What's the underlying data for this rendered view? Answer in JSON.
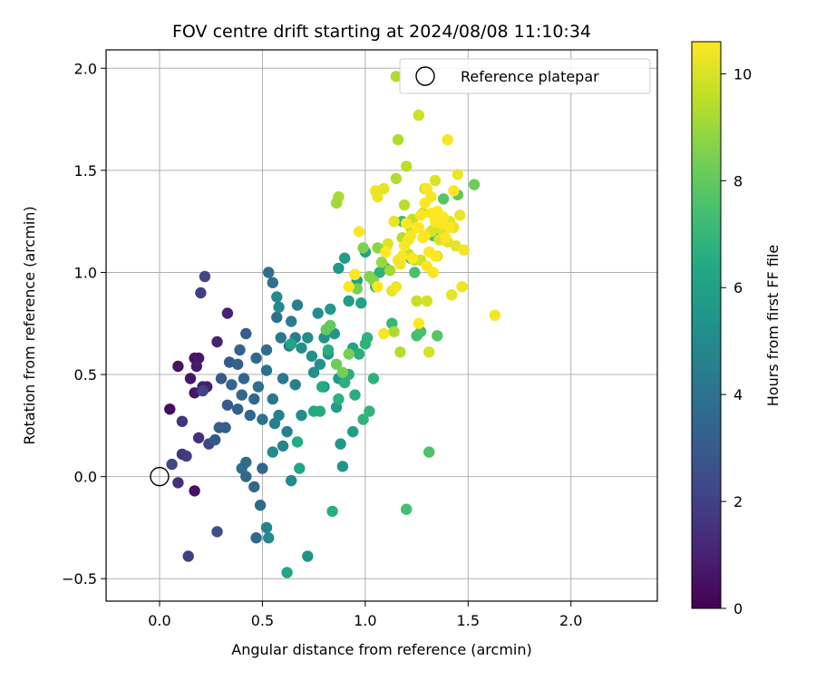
{
  "chart_data": {
    "type": "scatter",
    "title": "FOV centre drift starting at 2024/08/08 11:10:34",
    "xlabel": "Angular distance from reference (arcmin)",
    "ylabel": "Rotation from reference (arcmin)",
    "xlim": [
      -0.26,
      2.42
    ],
    "ylim": [
      -0.61,
      2.09
    ],
    "xticks": [
      0.0,
      0.5,
      1.0,
      1.5,
      2.0
    ],
    "xtick_labels": [
      "0.0",
      "0.5",
      "1.0",
      "1.5",
      "2.0"
    ],
    "yticks": [
      -0.5,
      0.0,
      0.5,
      1.0,
      1.5,
      2.0
    ],
    "ytick_labels": [
      "−0.5",
      "0.0",
      "0.5",
      "1.0",
      "1.5",
      "2.0"
    ],
    "grid": true,
    "legend": {
      "position": "top-right",
      "label": "Reference platepar"
    },
    "reference_point": {
      "x": 0.0,
      "y": 0.0
    },
    "colorbar": {
      "label": "Hours from first FF file",
      "colormap": "viridis",
      "range": [
        0,
        10.6
      ],
      "ticks": [
        0,
        2,
        4,
        6,
        8,
        10
      ],
      "tick_labels": [
        "0",
        "2",
        "4",
        "6",
        "8",
        "10"
      ]
    },
    "points": [
      [
        0.05,
        0.33,
        0.4
      ],
      [
        0.09,
        0.54,
        0.5
      ],
      [
        0.15,
        0.48,
        0.6
      ],
      [
        0.17,
        0.58,
        0.6
      ],
      [
        0.19,
        0.58,
        0.7
      ],
      [
        0.17,
        0.41,
        0.6
      ],
      [
        0.21,
        0.44,
        0.8
      ],
      [
        0.18,
        0.54,
        0.8
      ],
      [
        0.23,
        0.44,
        0.9
      ],
      [
        0.28,
        0.66,
        1.0
      ],
      [
        0.33,
        0.8,
        1.0
      ],
      [
        0.17,
        -0.07,
        0.5
      ],
      [
        0.09,
        -0.03,
        1.4
      ],
      [
        0.11,
        0.11,
        1.6
      ],
      [
        0.11,
        0.27,
        1.6
      ],
      [
        0.13,
        0.1,
        1.9
      ],
      [
        0.19,
        0.19,
        1.5
      ],
      [
        0.14,
        -0.39,
        2.0
      ],
      [
        0.2,
        0.9,
        2.0
      ],
      [
        0.22,
        0.98,
        2.2
      ],
      [
        0.21,
        0.42,
        2.1
      ],
      [
        0.24,
        0.16,
        2.2
      ],
      [
        0.06,
        0.06,
        2.3
      ],
      [
        0.28,
        -0.27,
        2.6
      ],
      [
        0.27,
        0.18,
        3.0
      ],
      [
        0.29,
        0.24,
        3.2
      ],
      [
        0.3,
        0.48,
        3.0
      ],
      [
        0.33,
        0.35,
        3.0
      ],
      [
        0.34,
        0.56,
        3.0
      ],
      [
        0.32,
        0.24,
        3.2
      ],
      [
        0.38,
        0.33,
        3.2
      ],
      [
        0.35,
        0.45,
        3.5
      ],
      [
        0.38,
        0.55,
        3.3
      ],
      [
        0.39,
        0.62,
        3.3
      ],
      [
        0.4,
        0.4,
        3.5
      ],
      [
        0.41,
        0.48,
        3.5
      ],
      [
        0.42,
        0.7,
        3.2
      ],
      [
        0.4,
        0.04,
        3.8
      ],
      [
        0.42,
        0.07,
        3.6
      ],
      [
        0.44,
        0.3,
        3.5
      ],
      [
        0.46,
        0.38,
        3.5
      ],
      [
        0.47,
        0.58,
        3.6
      ],
      [
        0.42,
        0.0,
        3.6
      ],
      [
        0.46,
        -0.05,
        3.5
      ],
      [
        0.47,
        -0.3,
        3.5
      ],
      [
        0.49,
        -0.14,
        3.6
      ],
      [
        0.5,
        0.04,
        3.6
      ],
      [
        0.48,
        0.44,
        3.8
      ],
      [
        0.5,
        0.28,
        4.0
      ],
      [
        0.52,
        0.52,
        4.0
      ],
      [
        0.52,
        0.62,
        3.8
      ],
      [
        0.53,
        1.0,
        3.8
      ],
      [
        0.55,
        0.95,
        3.9
      ],
      [
        0.57,
        0.78,
        3.9
      ],
      [
        0.55,
        0.38,
        4.2
      ],
      [
        0.59,
        0.68,
        4.2
      ],
      [
        0.6,
        0.48,
        4.2
      ],
      [
        0.63,
        0.64,
        4.3
      ],
      [
        0.64,
        0.76,
        4.4
      ],
      [
        0.66,
        0.45,
        4.5
      ],
      [
        0.66,
        0.68,
        4.4
      ],
      [
        0.67,
        0.84,
        4.6
      ],
      [
        0.56,
        0.26,
        4.5
      ],
      [
        0.58,
        0.3,
        4.6
      ],
      [
        0.6,
        0.15,
        4.8
      ],
      [
        0.62,
        0.22,
        4.6
      ],
      [
        0.64,
        -0.02,
        4.9
      ],
      [
        0.52,
        -0.25,
        4.8
      ],
      [
        0.53,
        -0.3,
        5.0
      ],
      [
        0.55,
        0.12,
        5.0
      ],
      [
        0.57,
        0.88,
        5.0
      ],
      [
        0.58,
        0.83,
        5.0
      ],
      [
        0.69,
        0.3,
        5.2
      ],
      [
        0.69,
        0.63,
        5.2
      ],
      [
        0.72,
        -0.39,
        5.4
      ],
      [
        0.72,
        0.68,
        5.1
      ],
      [
        0.74,
        0.59,
        5.3
      ],
      [
        0.75,
        0.51,
        5.2
      ],
      [
        0.77,
        0.8,
        5.1
      ],
      [
        0.78,
        0.55,
        5.4
      ],
      [
        0.8,
        0.44,
        5.6
      ],
      [
        0.8,
        0.68,
        5.4
      ],
      [
        0.82,
        0.6,
        5.5
      ],
      [
        0.83,
        0.82,
        5.6
      ],
      [
        0.85,
        0.7,
        5.5
      ],
      [
        0.87,
        0.48,
        5.7
      ],
      [
        0.86,
        0.34,
        5.8
      ],
      [
        0.88,
        0.16,
        5.6
      ],
      [
        0.89,
        0.05,
        5.5
      ],
      [
        0.87,
        1.02,
        5.6
      ],
      [
        0.9,
        1.07,
        5.7
      ],
      [
        0.92,
        0.86,
        5.8
      ],
      [
        0.94,
        0.22,
        5.8
      ],
      [
        0.94,
        0.63,
        6.0
      ],
      [
        0.96,
        0.96,
        6.0
      ],
      [
        0.98,
        0.85,
        6.1
      ],
      [
        1.0,
        1.1,
        6.0
      ],
      [
        0.62,
        -0.47,
        6.2
      ],
      [
        0.64,
        0.65,
        6.2
      ],
      [
        0.68,
        0.04,
        6.3
      ],
      [
        0.67,
        0.17,
        6.4
      ],
      [
        0.75,
        0.32,
        6.4
      ],
      [
        0.78,
        0.32,
        6.5
      ],
      [
        0.79,
        0.44,
        6.5
      ],
      [
        0.82,
        0.62,
        6.6
      ],
      [
        0.84,
        -0.17,
        6.6
      ],
      [
        0.87,
        0.38,
        6.7
      ],
      [
        0.9,
        0.46,
        6.7
      ],
      [
        0.92,
        0.5,
        6.6
      ],
      [
        0.95,
        0.4,
        6.6
      ],
      [
        0.97,
        0.6,
        6.6
      ],
      [
        0.99,
        0.28,
        6.8
      ],
      [
        1.0,
        0.65,
        6.8
      ],
      [
        1.01,
        0.68,
        6.8
      ],
      [
        1.02,
        0.32,
        6.9
      ],
      [
        1.04,
        0.48,
        6.8
      ],
      [
        1.05,
        0.93,
        6.7
      ],
      [
        1.07,
        1.0,
        6.7
      ],
      [
        1.1,
        1.02,
        6.8
      ],
      [
        1.13,
        0.75,
        7.0
      ],
      [
        1.18,
        1.25,
        7.2
      ],
      [
        1.2,
        -0.16,
        7.4
      ],
      [
        1.22,
        1.07,
        7.0
      ],
      [
        1.24,
        1.0,
        7.5
      ],
      [
        1.25,
        0.69,
        7.4
      ],
      [
        1.27,
        0.71,
        7.5
      ],
      [
        1.31,
        0.12,
        7.6
      ],
      [
        1.33,
        1.18,
        7.5
      ],
      [
        1.35,
        0.69,
        7.8
      ],
      [
        1.36,
        1.17,
        7.6
      ],
      [
        1.38,
        1.36,
        7.8
      ],
      [
        1.45,
        1.38,
        8.0
      ],
      [
        1.53,
        1.43,
        8.2
      ],
      [
        0.81,
        0.72,
        8.0
      ],
      [
        0.83,
        0.74,
        8.0
      ],
      [
        0.86,
        0.55,
        8.2
      ],
      [
        0.89,
        0.51,
        8.3
      ],
      [
        0.92,
        0.6,
        8.4
      ],
      [
        0.95,
        0.99,
        8.2
      ],
      [
        0.96,
        0.92,
        8.4
      ],
      [
        0.99,
        1.12,
        8.5
      ],
      [
        1.02,
        0.98,
        8.6
      ],
      [
        1.04,
        0.96,
        8.7
      ],
      [
        1.06,
        1.12,
        8.8
      ],
      [
        1.08,
        1.05,
        8.9
      ],
      [
        1.1,
        1.12,
        9.0
      ],
      [
        1.12,
        1.01,
        9.1
      ],
      [
        1.14,
        0.71,
        9.2
      ],
      [
        1.15,
        1.46,
        9.3
      ],
      [
        1.16,
        1.65,
        9.3
      ],
      [
        1.17,
        0.61,
        9.4
      ],
      [
        1.18,
        1.17,
        9.5
      ],
      [
        1.19,
        1.33,
        9.5
      ],
      [
        1.2,
        1.52,
        9.5
      ],
      [
        1.21,
        1.09,
        9.6
      ],
      [
        1.22,
        1.22,
        9.6
      ],
      [
        1.23,
        1.26,
        9.6
      ],
      [
        1.24,
        1.06,
        9.7
      ],
      [
        1.25,
        0.86,
        9.7
      ],
      [
        1.26,
        1.77,
        9.8
      ],
      [
        1.27,
        1.06,
        9.8
      ],
      [
        1.28,
        1.29,
        9.8
      ],
      [
        1.29,
        1.41,
        9.8
      ],
      [
        1.3,
        0.86,
        9.9
      ],
      [
        1.31,
        0.61,
        9.9
      ],
      [
        1.32,
        1.2,
        9.9
      ],
      [
        1.33,
        1.21,
        10.0
      ],
      [
        1.34,
        1.45,
        10.0
      ],
      [
        1.35,
        1.08,
        10.0
      ],
      [
        1.36,
        1.16,
        10.0
      ],
      [
        1.38,
        1.2,
        10.1
      ],
      [
        1.4,
        1.15,
        10.1
      ],
      [
        1.41,
        1.25,
        10.1
      ],
      [
        1.42,
        0.89,
        10.2
      ],
      [
        1.43,
        1.22,
        10.2
      ],
      [
        1.44,
        1.13,
        10.2
      ],
      [
        1.45,
        1.48,
        10.3
      ],
      [
        1.46,
        1.28,
        10.3
      ],
      [
        1.47,
        0.93,
        10.4
      ],
      [
        1.48,
        1.11,
        10.4
      ],
      [
        1.63,
        0.79,
        10.5
      ],
      [
        1.05,
        1.4,
        10.3
      ],
      [
        1.06,
        1.37,
        10.3
      ],
      [
        1.09,
        1.41,
        10.2
      ],
      [
        1.11,
        1.14,
        10.1
      ],
      [
        1.13,
        0.91,
        10.2
      ],
      [
        1.14,
        1.25,
        10.3
      ],
      [
        1.16,
        1.06,
        10.4
      ],
      [
        1.17,
        1.04,
        10.4
      ],
      [
        1.18,
        1.08,
        10.5
      ],
      [
        1.19,
        1.13,
        10.5
      ],
      [
        1.21,
        1.16,
        10.5
      ],
      [
        1.22,
        1.18,
        10.5
      ],
      [
        1.23,
        1.07,
        10.6
      ],
      [
        1.25,
        1.22,
        10.6
      ],
      [
        1.26,
        1.22,
        10.6
      ],
      [
        1.27,
        1.28,
        10.6
      ],
      [
        1.28,
        1.17,
        10.6
      ],
      [
        1.29,
        1.34,
        10.6
      ],
      [
        1.31,
        1.1,
        10.6
      ],
      [
        1.32,
        1.29,
        10.6
      ],
      [
        1.33,
        1.0,
        10.6
      ],
      [
        1.34,
        1.25,
        10.6
      ],
      [
        1.35,
        1.3,
        10.6
      ],
      [
        1.37,
        1.24,
        10.6
      ],
      [
        1.38,
        1.27,
        10.6
      ],
      [
        1.39,
        1.17,
        10.6
      ],
      [
        1.4,
        1.65,
        10.5
      ],
      [
        1.41,
        1.22,
        10.6
      ],
      [
        1.43,
        1.4,
        10.6
      ],
      [
        1.3,
        1.41,
        10.6
      ],
      [
        1.32,
        1.37,
        10.5
      ],
      [
        1.29,
        1.18,
        10.6
      ],
      [
        1.26,
        0.75,
        10.6
      ],
      [
        1.2,
        1.24,
        10.6
      ],
      [
        1.15,
        1.96,
        9.3
      ],
      [
        0.87,
        1.37,
        9.2
      ],
      [
        0.86,
        1.34,
        9.1
      ],
      [
        1.15,
        0.93,
        10.4
      ],
      [
        1.3,
        1.03,
        10.6
      ],
      [
        1.1,
        1.1,
        10.6
      ],
      [
        0.92,
        0.93,
        10.6
      ],
      [
        0.95,
        0.99,
        10.6
      ],
      [
        0.97,
        1.2,
        10.6
      ],
      [
        1.06,
        0.93,
        10.6
      ],
      [
        1.09,
        0.7,
        10.5
      ],
      [
        1.34,
        1.08,
        10.6
      ]
    ]
  }
}
